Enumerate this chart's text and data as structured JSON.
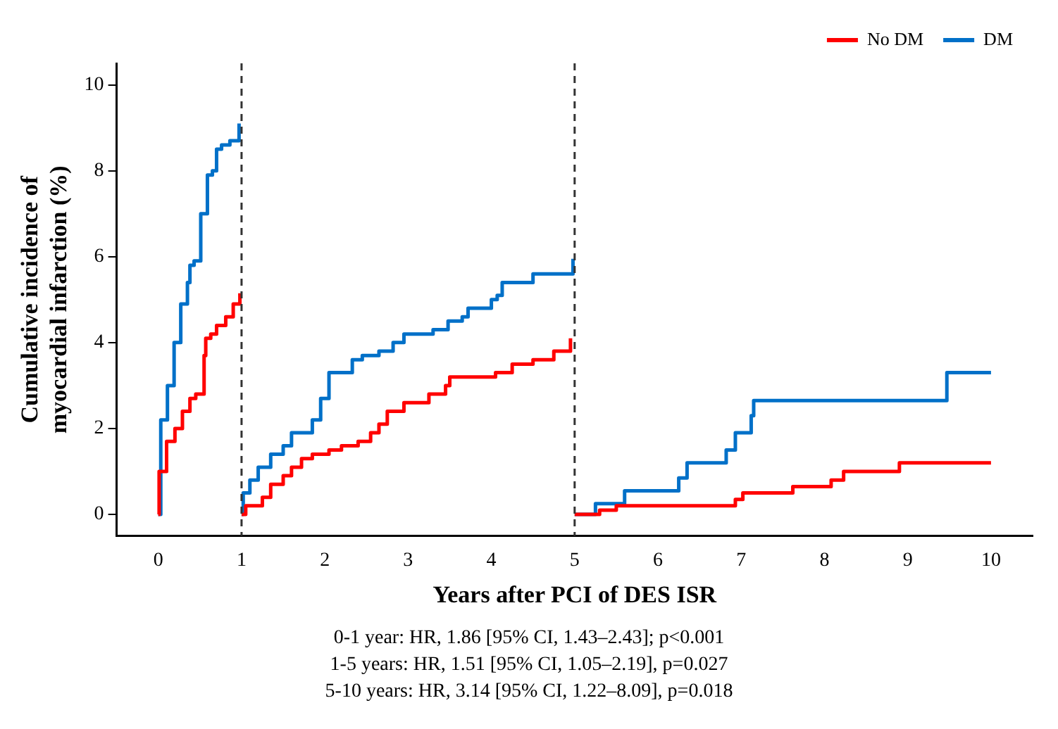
{
  "chart_data": {
    "type": "step",
    "xlabel": "Years after PCI of DES ISR",
    "ylabel": "Cumulative incidence of\nmyocardial infarction (%)",
    "xlim": [
      -0.5,
      10.5
    ],
    "ylim": [
      -0.5,
      10.5
    ],
    "xticks": [
      0,
      1,
      2,
      3,
      4,
      5,
      6,
      7,
      8,
      9,
      10
    ],
    "yticks": [
      0,
      2,
      4,
      6,
      8,
      10
    ],
    "grid": false,
    "legend": "top right",
    "line_style": "solid",
    "marker": "none",
    "series": [
      {
        "name": "No DM",
        "color": "#ff0000",
        "x": [
          0,
          0.01,
          0.1,
          0.2,
          0.29,
          0.38,
          0.45,
          0.55,
          0.57,
          0.63,
          0.7,
          0.81,
          0.9,
          0.98
        ],
        "values": [
          0,
          1.0,
          1.7,
          2.0,
          2.4,
          2.7,
          2.8,
          3.7,
          4.1,
          4.2,
          4.4,
          4.6,
          4.9,
          5.15
        ]
      },
      {
        "name": "DM",
        "color": "#0070c8",
        "x": [
          0,
          0.03,
          0.11,
          0.19,
          0.27,
          0.35,
          0.38,
          0.43,
          0.51,
          0.59,
          0.65,
          0.7,
          0.76,
          0.86,
          0.97
        ],
        "values": [
          0,
          2.2,
          3.0,
          4.0,
          4.9,
          5.4,
          5.8,
          5.9,
          7.0,
          7.9,
          8.0,
          8.5,
          8.6,
          8.7,
          9.1
        ]
      },
      {
        "color": "#ff0000",
        "x": [
          1,
          1.05,
          1.25,
          1.35,
          1.5,
          1.6,
          1.72,
          1.85,
          2.05,
          2.2,
          2.4,
          2.55,
          2.65,
          2.75,
          2.95,
          3.25,
          3.45,
          3.5,
          4.05,
          4.25,
          4.5,
          4.75,
          4.95
        ],
        "values": [
          0,
          0.2,
          0.4,
          0.7,
          0.9,
          1.1,
          1.3,
          1.4,
          1.5,
          1.6,
          1.7,
          1.9,
          2.1,
          2.4,
          2.6,
          2.8,
          3.0,
          3.2,
          3.3,
          3.5,
          3.6,
          3.8,
          4.1
        ]
      },
      {
        "color": "#0070c8",
        "x": [
          1,
          1.02,
          1.1,
          1.2,
          1.35,
          1.5,
          1.6,
          1.85,
          1.95,
          2.05,
          2.33,
          2.45,
          2.65,
          2.82,
          2.95,
          3.3,
          3.48,
          3.65,
          3.72,
          4.0,
          4.07,
          4.13,
          4.5,
          4.98
        ],
        "values": [
          0,
          0.5,
          0.8,
          1.1,
          1.4,
          1.6,
          1.9,
          2.2,
          2.7,
          3.3,
          3.6,
          3.7,
          3.8,
          4.0,
          4.2,
          4.3,
          4.5,
          4.6,
          4.8,
          5.0,
          5.1,
          5.4,
          5.6,
          5.95
        ]
      },
      {
        "color": "#ff0000",
        "x": [
          5,
          5.3,
          5.5,
          6.93,
          7.02,
          7.62,
          8.08,
          8.23,
          8.9,
          10
        ],
        "values": [
          0,
          0.1,
          0.2,
          0.35,
          0.5,
          0.65,
          0.8,
          1.0,
          1.2,
          1.2
        ]
      },
      {
        "color": "#0070c8",
        "x": [
          5,
          5.25,
          5.6,
          6.25,
          6.35,
          6.82,
          6.93,
          7.12,
          7.15,
          9.47,
          10
        ],
        "values": [
          0,
          0.25,
          0.55,
          0.85,
          1.2,
          1.5,
          1.9,
          2.3,
          2.65,
          3.3,
          3.3
        ]
      }
    ],
    "ref_lines": [
      {
        "axis": "x",
        "value": 1,
        "color": "#333333",
        "line_style": "dashed"
      },
      {
        "axis": "x",
        "value": 5,
        "color": "#333333",
        "line_style": "dashed"
      }
    ],
    "annotations": [
      "0-1 year: HR, 1.86 [95% CI, 1.43–2.43]; p<0.001",
      "1-5 years: HR, 1.51 [95% CI, 1.05–2.19], p=0.027",
      "5-10 years: HR, 3.14 [95% CI, 1.22–8.09], p=0.018"
    ]
  }
}
